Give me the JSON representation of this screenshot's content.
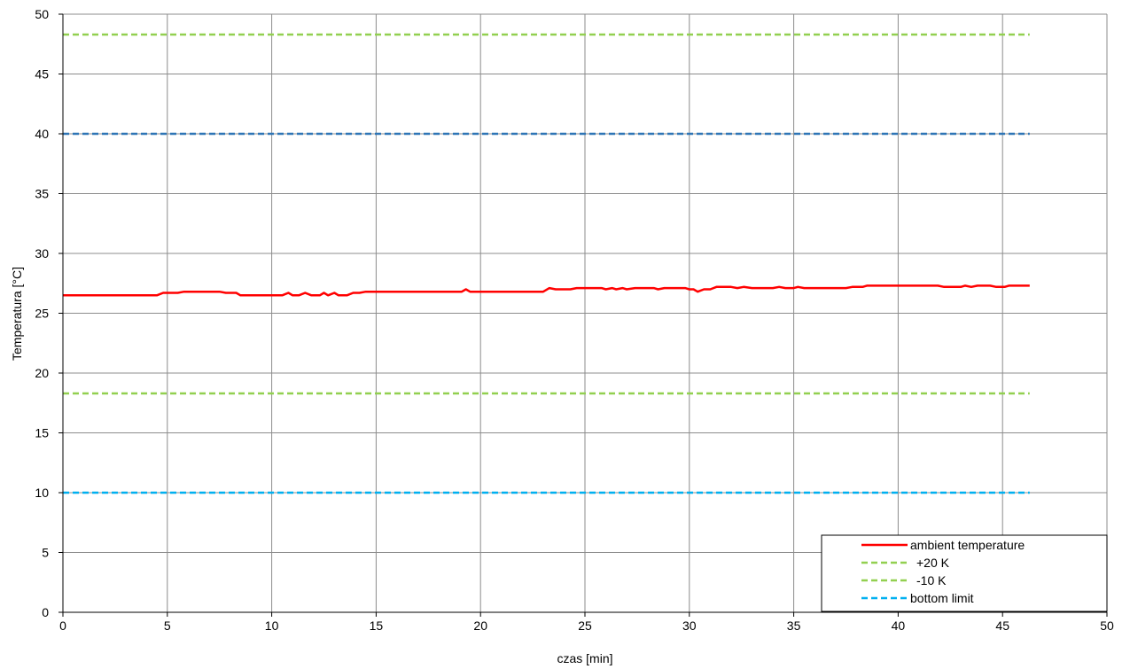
{
  "chart_data": {
    "type": "line",
    "title": "",
    "xlabel": "czas [min]",
    "ylabel": "Temperatura  [°C]",
    "xlim": [
      0,
      50
    ],
    "ylim": [
      0,
      50
    ],
    "xticks": [
      0,
      5,
      10,
      15,
      20,
      25,
      30,
      35,
      40,
      45,
      50
    ],
    "yticks": [
      0,
      5,
      10,
      15,
      20,
      25,
      30,
      35,
      40,
      45,
      50
    ],
    "grid": true,
    "legend_position": "bottom-right",
    "series": [
      {
        "name": "ambient temperature",
        "color": "#ff0000",
        "style": "solid",
        "points": [
          [
            0,
            26.5
          ],
          [
            4.5,
            26.5
          ],
          [
            4.8,
            26.7
          ],
          [
            5.5,
            26.7
          ],
          [
            5.8,
            26.8
          ],
          [
            7.5,
            26.8
          ],
          [
            7.8,
            26.7
          ],
          [
            8.3,
            26.7
          ],
          [
            8.5,
            26.5
          ],
          [
            10.5,
            26.5
          ],
          [
            10.8,
            26.7
          ],
          [
            11.0,
            26.5
          ],
          [
            11.3,
            26.5
          ],
          [
            11.6,
            26.7
          ],
          [
            11.9,
            26.5
          ],
          [
            12.3,
            26.5
          ],
          [
            12.5,
            26.7
          ],
          [
            12.7,
            26.5
          ],
          [
            13.0,
            26.7
          ],
          [
            13.2,
            26.5
          ],
          [
            13.6,
            26.5
          ],
          [
            13.9,
            26.7
          ],
          [
            14.2,
            26.7
          ],
          [
            14.5,
            26.8
          ],
          [
            19.1,
            26.8
          ],
          [
            19.3,
            27.0
          ],
          [
            19.5,
            26.8
          ],
          [
            23.0,
            26.8
          ],
          [
            23.3,
            27.1
          ],
          [
            23.6,
            27.0
          ],
          [
            24.3,
            27.0
          ],
          [
            24.6,
            27.1
          ],
          [
            25.8,
            27.1
          ],
          [
            26.0,
            27.0
          ],
          [
            26.3,
            27.1
          ],
          [
            26.5,
            27.0
          ],
          [
            26.8,
            27.1
          ],
          [
            27.0,
            27.0
          ],
          [
            27.4,
            27.1
          ],
          [
            28.3,
            27.1
          ],
          [
            28.5,
            27.0
          ],
          [
            28.8,
            27.1
          ],
          [
            29.8,
            27.1
          ],
          [
            30.0,
            27.0
          ],
          [
            30.2,
            27.0
          ],
          [
            30.4,
            26.8
          ],
          [
            30.7,
            27.0
          ],
          [
            31.0,
            27.0
          ],
          [
            31.3,
            27.2
          ],
          [
            32.0,
            27.2
          ],
          [
            32.3,
            27.1
          ],
          [
            32.6,
            27.2
          ],
          [
            33.0,
            27.1
          ],
          [
            34.0,
            27.1
          ],
          [
            34.3,
            27.2
          ],
          [
            34.6,
            27.1
          ],
          [
            35.0,
            27.1
          ],
          [
            35.2,
            27.2
          ],
          [
            35.5,
            27.1
          ],
          [
            37.5,
            27.1
          ],
          [
            37.8,
            27.2
          ],
          [
            38.3,
            27.2
          ],
          [
            38.5,
            27.3
          ],
          [
            41.9,
            27.3
          ],
          [
            42.2,
            27.2
          ],
          [
            43.0,
            27.2
          ],
          [
            43.2,
            27.3
          ],
          [
            43.5,
            27.2
          ],
          [
            43.8,
            27.3
          ],
          [
            44.4,
            27.3
          ],
          [
            44.7,
            27.2
          ],
          [
            45.1,
            27.2
          ],
          [
            45.3,
            27.3
          ],
          [
            46.3,
            27.3
          ]
        ]
      },
      {
        "name": "+20 K",
        "color": "#92d050",
        "style": "dashed",
        "points": [
          [
            0,
            48.3
          ],
          [
            46.3,
            48.3
          ]
        ]
      },
      {
        "name": "-10 K",
        "color": "#92d050",
        "style": "dashed",
        "points": [
          [
            0,
            18.3
          ],
          [
            46.3,
            18.3
          ]
        ]
      },
      {
        "name": "",
        "color": "#2e75b6",
        "style": "dashed",
        "points": [
          [
            0,
            40
          ],
          [
            46.3,
            40
          ]
        ]
      },
      {
        "name": "bottom limit",
        "color": "#00b0f0",
        "style": "dashed",
        "points": [
          [
            0,
            10
          ],
          [
            46.3,
            10
          ]
        ]
      }
    ]
  }
}
